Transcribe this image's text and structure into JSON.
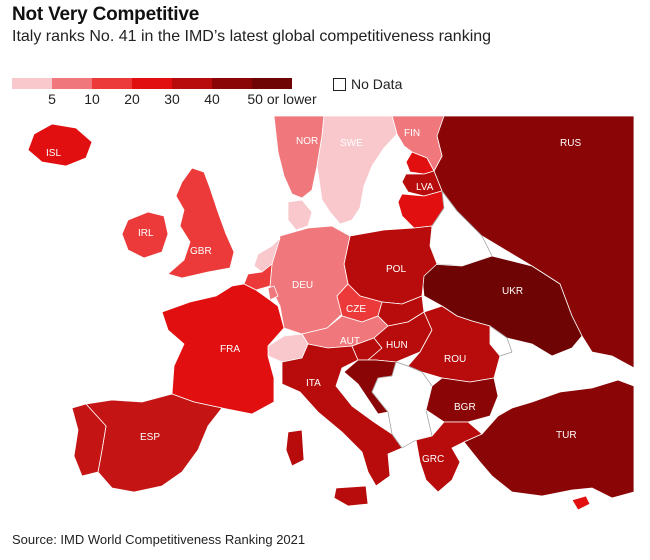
{
  "header": {
    "title": "Not Very Competitive",
    "subtitle": "Italy ranks No. 41 in the IMD’s latest global competitiveness ranking"
  },
  "legend": {
    "colors": [
      "#f8c8cc",
      "#f0787c",
      "#ec3a3a",
      "#e10f0f",
      "#b80b0b",
      "#8a0606",
      "#6e0404"
    ],
    "labels": [
      "5",
      "10",
      "20",
      "30",
      "40",
      "50 or lower"
    ],
    "no_data_label": "No Data"
  },
  "countries": {
    "ISL": {
      "label": "ISL",
      "color": "#e10f0f"
    },
    "NOR": {
      "label": "NOR",
      "color": "#f0787c"
    },
    "SWE": {
      "label": "SWE",
      "color": "#f8c8cc"
    },
    "FIN": {
      "label": "FIN",
      "color": "#f0787c"
    },
    "RUS": {
      "label": "RUS",
      "color": "#8a0606"
    },
    "LVA": {
      "label": "LVA",
      "color": "#b80b0b"
    },
    "IRL": {
      "label": "IRL",
      "color": "#ec3a3a"
    },
    "GBR": {
      "label": "GBR",
      "color": "#ec3a3a"
    },
    "DEU": {
      "label": "DEU",
      "color": "#f0787c"
    },
    "POL": {
      "label": "POL",
      "color": "#b80b0b"
    },
    "UKR": {
      "label": "UKR",
      "color": "#6e0404"
    },
    "CZE": {
      "label": "CZE",
      "color": "#ec3a3a"
    },
    "FRA": {
      "label": "FRA",
      "color": "#e10f0f"
    },
    "AUT": {
      "label": "AUT",
      "color": "#f0787c"
    },
    "HUN": {
      "label": "HUN",
      "color": "#b80b0b"
    },
    "ROU": {
      "label": "ROU",
      "color": "#b80b0b"
    },
    "ITA": {
      "label": "ITA",
      "color": "#b80b0b"
    },
    "BGR": {
      "label": "BGR",
      "color": "#8a0606"
    },
    "ESP": {
      "label": "ESP",
      "color": "#c41414"
    },
    "TUR": {
      "label": "TUR",
      "color": "#8a0606"
    },
    "GRC": {
      "label": "GRC",
      "color": "#b80b0b"
    },
    "EST": {
      "label": "",
      "color": "#e10f0f"
    },
    "LTU": {
      "label": "",
      "color": "#e10f0f"
    },
    "BLR": {
      "label": "",
      "color": "#ffffff"
    },
    "DNK": {
      "label": "",
      "color": "#f8c8cc"
    },
    "NLD": {
      "label": "",
      "color": "#f8c8cc"
    },
    "BEL": {
      "label": "",
      "color": "#ec3a3a"
    },
    "LUX": {
      "label": "",
      "color": "#f0787c"
    },
    "CHE": {
      "label": "",
      "color": "#f8c8cc"
    },
    "SVK": {
      "label": "",
      "color": "#b80b0b"
    },
    "SVN": {
      "label": "",
      "color": "#b80b0b"
    },
    "HRV": {
      "label": "",
      "color": "#8a0606"
    },
    "PRT": {
      "label": "",
      "color": "#c41414"
    },
    "CYP": {
      "label": "",
      "color": "#e10f0f"
    },
    "BALKANS": {
      "label": "",
      "color": "#ffffff"
    },
    "MDA": {
      "label": "",
      "color": "#ffffff"
    }
  },
  "source": "Source: IMD World Competitiveness Ranking 2021"
}
